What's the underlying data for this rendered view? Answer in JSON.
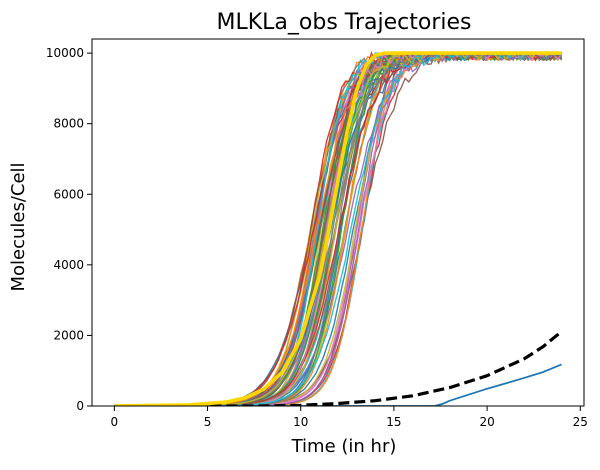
{
  "chart_data": {
    "type": "line",
    "title": "MLKLa_obs Trajectories",
    "xlabel": "Time (in hr)",
    "ylabel": "Molecules/Cell",
    "xlim": [
      -1.2,
      25.2
    ],
    "ylim": [
      0,
      10400
    ],
    "x_ticks": [
      0,
      5,
      10,
      15,
      20,
      25
    ],
    "y_ticks": [
      0,
      2000,
      4000,
      6000,
      8000,
      10000
    ],
    "grid": false,
    "legend": "none",
    "trajectory_ensemble": {
      "count": 60,
      "plateau": 10000,
      "half_max_time_range": [
        10.5,
        13.3
      ],
      "colors": [
        "#1f77b4",
        "#ff7f0e",
        "#2ca02c",
        "#d62728",
        "#9467bd",
        "#8c564b",
        "#e377c2",
        "#7f7f7f",
        "#bcbd22",
        "#17becf"
      ]
    },
    "series": [
      {
        "color": "#1f77b4",
        "style": "solid",
        "x": [
          0,
          5,
          10,
          15,
          17.2,
          17.6,
          18,
          19,
          20,
          21,
          22,
          23,
          24
        ],
        "y": [
          0,
          0,
          0,
          0,
          0,
          60,
          150,
          320,
          490,
          640,
          800,
          960,
          1180
        ]
      },
      {
        "color": "#000000",
        "style": "dashed",
        "x": [
          0,
          4,
          8,
          10,
          12,
          14,
          16,
          18,
          20,
          22,
          23,
          24
        ],
        "y": [
          0,
          0,
          0,
          20,
          70,
          150,
          290,
          520,
          860,
          1340,
          1680,
          2110
        ]
      },
      {
        "color": "#ffd700",
        "style": "thick",
        "x": [
          0,
          4,
          6,
          7,
          8,
          9,
          10,
          11,
          11.5,
          12,
          12.5,
          13,
          13.5,
          14,
          14.5,
          15,
          17,
          20,
          24
        ],
        "y": [
          0,
          30,
          110,
          230,
          470,
          950,
          1900,
          3650,
          4950,
          6400,
          7800,
          8950,
          9650,
          9940,
          10000,
          10000,
          10000,
          10000,
          10000
        ]
      }
    ]
  }
}
